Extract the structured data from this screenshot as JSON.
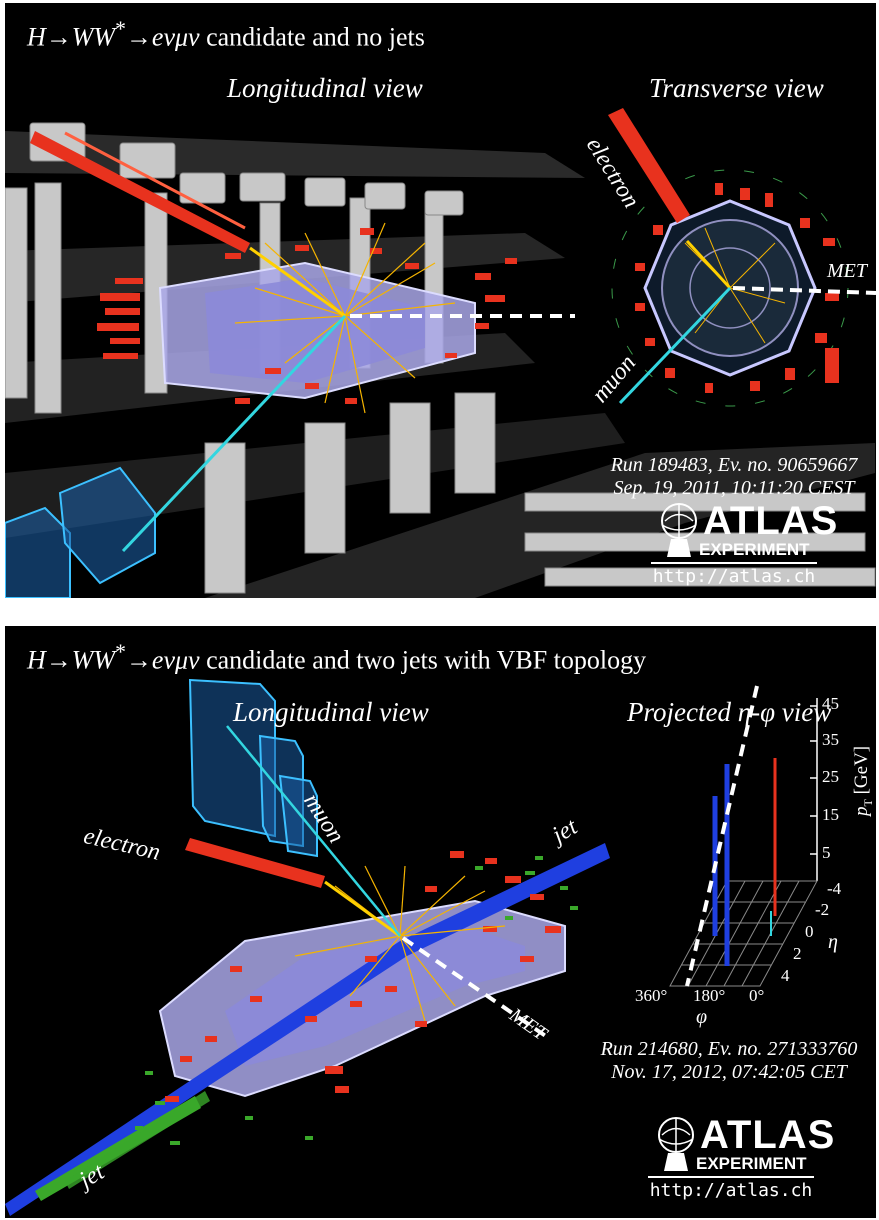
{
  "panels": [
    {
      "title_prefix": "H→WW",
      "title_sup": "*",
      "title_arrow": "→",
      "title_particles": "eνμν",
      "title_rest": " candidate and no jets",
      "views": [
        "Longitudinal view",
        "Transverse view"
      ],
      "labels": {
        "electron": "electron",
        "muon": "muon",
        "met": "MET"
      },
      "run_line1": "Run 189483, Ev. no. 90659667",
      "run_line2": "Sep. 19, 2011, 10:11:20 CEST"
    },
    {
      "title_prefix": "H→WW",
      "title_sup": "*",
      "title_arrow": "→",
      "title_particles": "eνμν",
      "title_rest": " candidate and two jets with VBF topology",
      "views": [
        "Longitudinal view",
        "Projected η-φ view"
      ],
      "labels": {
        "electron": "electron",
        "muon": "muon",
        "met": "MET",
        "jet1": "jet",
        "jet2": "jet"
      },
      "pt_ticks": [
        "45",
        "35",
        "25",
        "15",
        "5"
      ],
      "pt_axis_label": "p",
      "pt_axis_sub": "T",
      "pt_axis_unit": " [GeV]",
      "eta_ticks": [
        "-4",
        "-2",
        "0",
        "2",
        "4"
      ],
      "eta_label": "η",
      "phi_ticks": [
        "360°",
        "180°",
        "0°"
      ],
      "phi_label": "φ",
      "run_line1": "Run 214680, Ev. no. 271333760",
      "run_line2": "Nov. 17, 2012, 07:42:05 CET"
    }
  ],
  "logo": {
    "word": "ATLAS",
    "sub": "EXPERIMENT",
    "url": "http://atlas.ch"
  },
  "colors": {
    "background": "#000000",
    "electron": "#e8321e",
    "muon": "#33d6e0",
    "tracks": "#f5b400",
    "jet": "#1f3fe0",
    "jet_green": "#3aa82a",
    "calorimeter": "#a9a7e8",
    "met": "#ffffff"
  }
}
